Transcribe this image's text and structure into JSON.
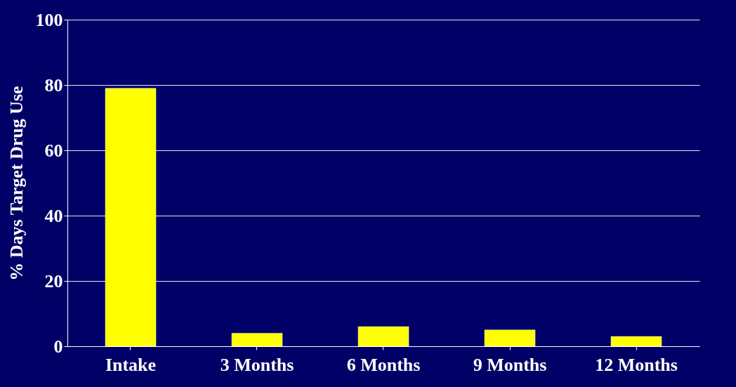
{
  "chart_data": {
    "type": "bar",
    "ylabel": "% Days Target Drug Use",
    "categories": [
      "Intake",
      "3 Months",
      "6 Months",
      "9 Months",
      "12 Months"
    ],
    "values": [
      79,
      4,
      6,
      5,
      3
    ],
    "color": "#ffff00",
    "ylim": [
      0,
      100
    ],
    "yticks": [
      0,
      20,
      40,
      60,
      80,
      100
    ],
    "grid": "y"
  }
}
